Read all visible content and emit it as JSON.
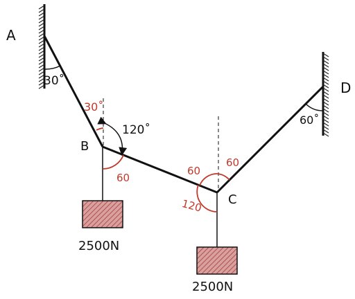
{
  "colors": {
    "ink": "#111111",
    "red": "#c0392b",
    "block_fill": "#d9a0a0",
    "block_hatch": "#b0504a"
  },
  "points": {
    "a": "A",
    "b": "B",
    "c": "C",
    "d": "D"
  },
  "angles": {
    "at_a": "30˚",
    "at_b_top": "30˚",
    "at_b_between": "120˚",
    "at_b_bottom": "60",
    "at_c_left": "60",
    "at_c_right": "60",
    "at_c_bottom": "120",
    "at_d": "60˚"
  },
  "weights": {
    "left": "2500N",
    "right": "2500N"
  }
}
